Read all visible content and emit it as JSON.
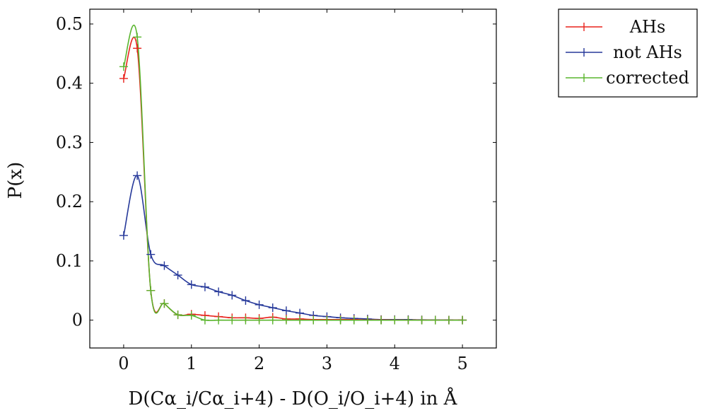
{
  "chart_data": {
    "type": "line",
    "title": "",
    "xlabel": "D(Cα_i/Cα_i+4) - D(O_i/O_i+4) in Å",
    "ylabel": "P(x)",
    "xlim": [
      -0.5,
      5.5
    ],
    "ylim": [
      -0.047,
      0.525
    ],
    "x_ticks": [
      0,
      1,
      2,
      3,
      4,
      5
    ],
    "y_ticks": [
      0,
      0.1,
      0.2,
      0.3,
      0.4,
      0.5
    ],
    "x_tick_labels": [
      "0",
      "1",
      "2",
      "3",
      "4",
      "5"
    ],
    "y_tick_labels": [
      "0",
      "0.1",
      "0.2",
      "0.3",
      "0.4",
      "0.5"
    ],
    "grid": false,
    "legend_position": "outside-top-right",
    "x": [
      0,
      0.2,
      0.4,
      0.6,
      0.8,
      1.0,
      1.2,
      1.4,
      1.6,
      1.8,
      2.0,
      2.2,
      2.4,
      2.6,
      2.8,
      3.0,
      3.2,
      3.4,
      3.6,
      3.8,
      4.0,
      4.2,
      4.4,
      4.6,
      4.8,
      5.0
    ],
    "series": [
      {
        "name": "AHs",
        "color": "#e8221c",
        "values": [
          0.408,
          0.459,
          0.05,
          0.028,
          0.009,
          0.01,
          0.008,
          0.006,
          0.004,
          0.004,
          0.003,
          0.005,
          0.002,
          0.002,
          0.001,
          0.001,
          0.001,
          0.001,
          0.0005,
          0.0005,
          0.0003,
          0.0002,
          0.0002,
          0.0001,
          0.0001,
          0.0001
        ]
      },
      {
        "name": "not AHs",
        "color": "#26399a",
        "values": [
          0.143,
          0.244,
          0.111,
          0.092,
          0.076,
          0.06,
          0.056,
          0.048,
          0.042,
          0.033,
          0.026,
          0.021,
          0.016,
          0.012,
          0.008,
          0.006,
          0.004,
          0.003,
          0.002,
          0.001,
          0.001,
          0.001,
          0.0005,
          0.0003,
          0.0002,
          0.0001
        ]
      },
      {
        "name": "corrected",
        "color": "#5ab52e",
        "values": [
          0.428,
          0.478,
          0.05,
          0.028,
          0.009,
          0.008,
          0.0,
          0.0,
          0.0,
          0.0,
          0.0,
          0.0,
          0.0,
          0.0,
          0.0,
          0.0,
          0.0,
          0.0,
          0.0,
          0.0,
          0.0,
          0.0,
          0.0,
          0.0,
          0.0,
          0.0
        ]
      }
    ]
  }
}
